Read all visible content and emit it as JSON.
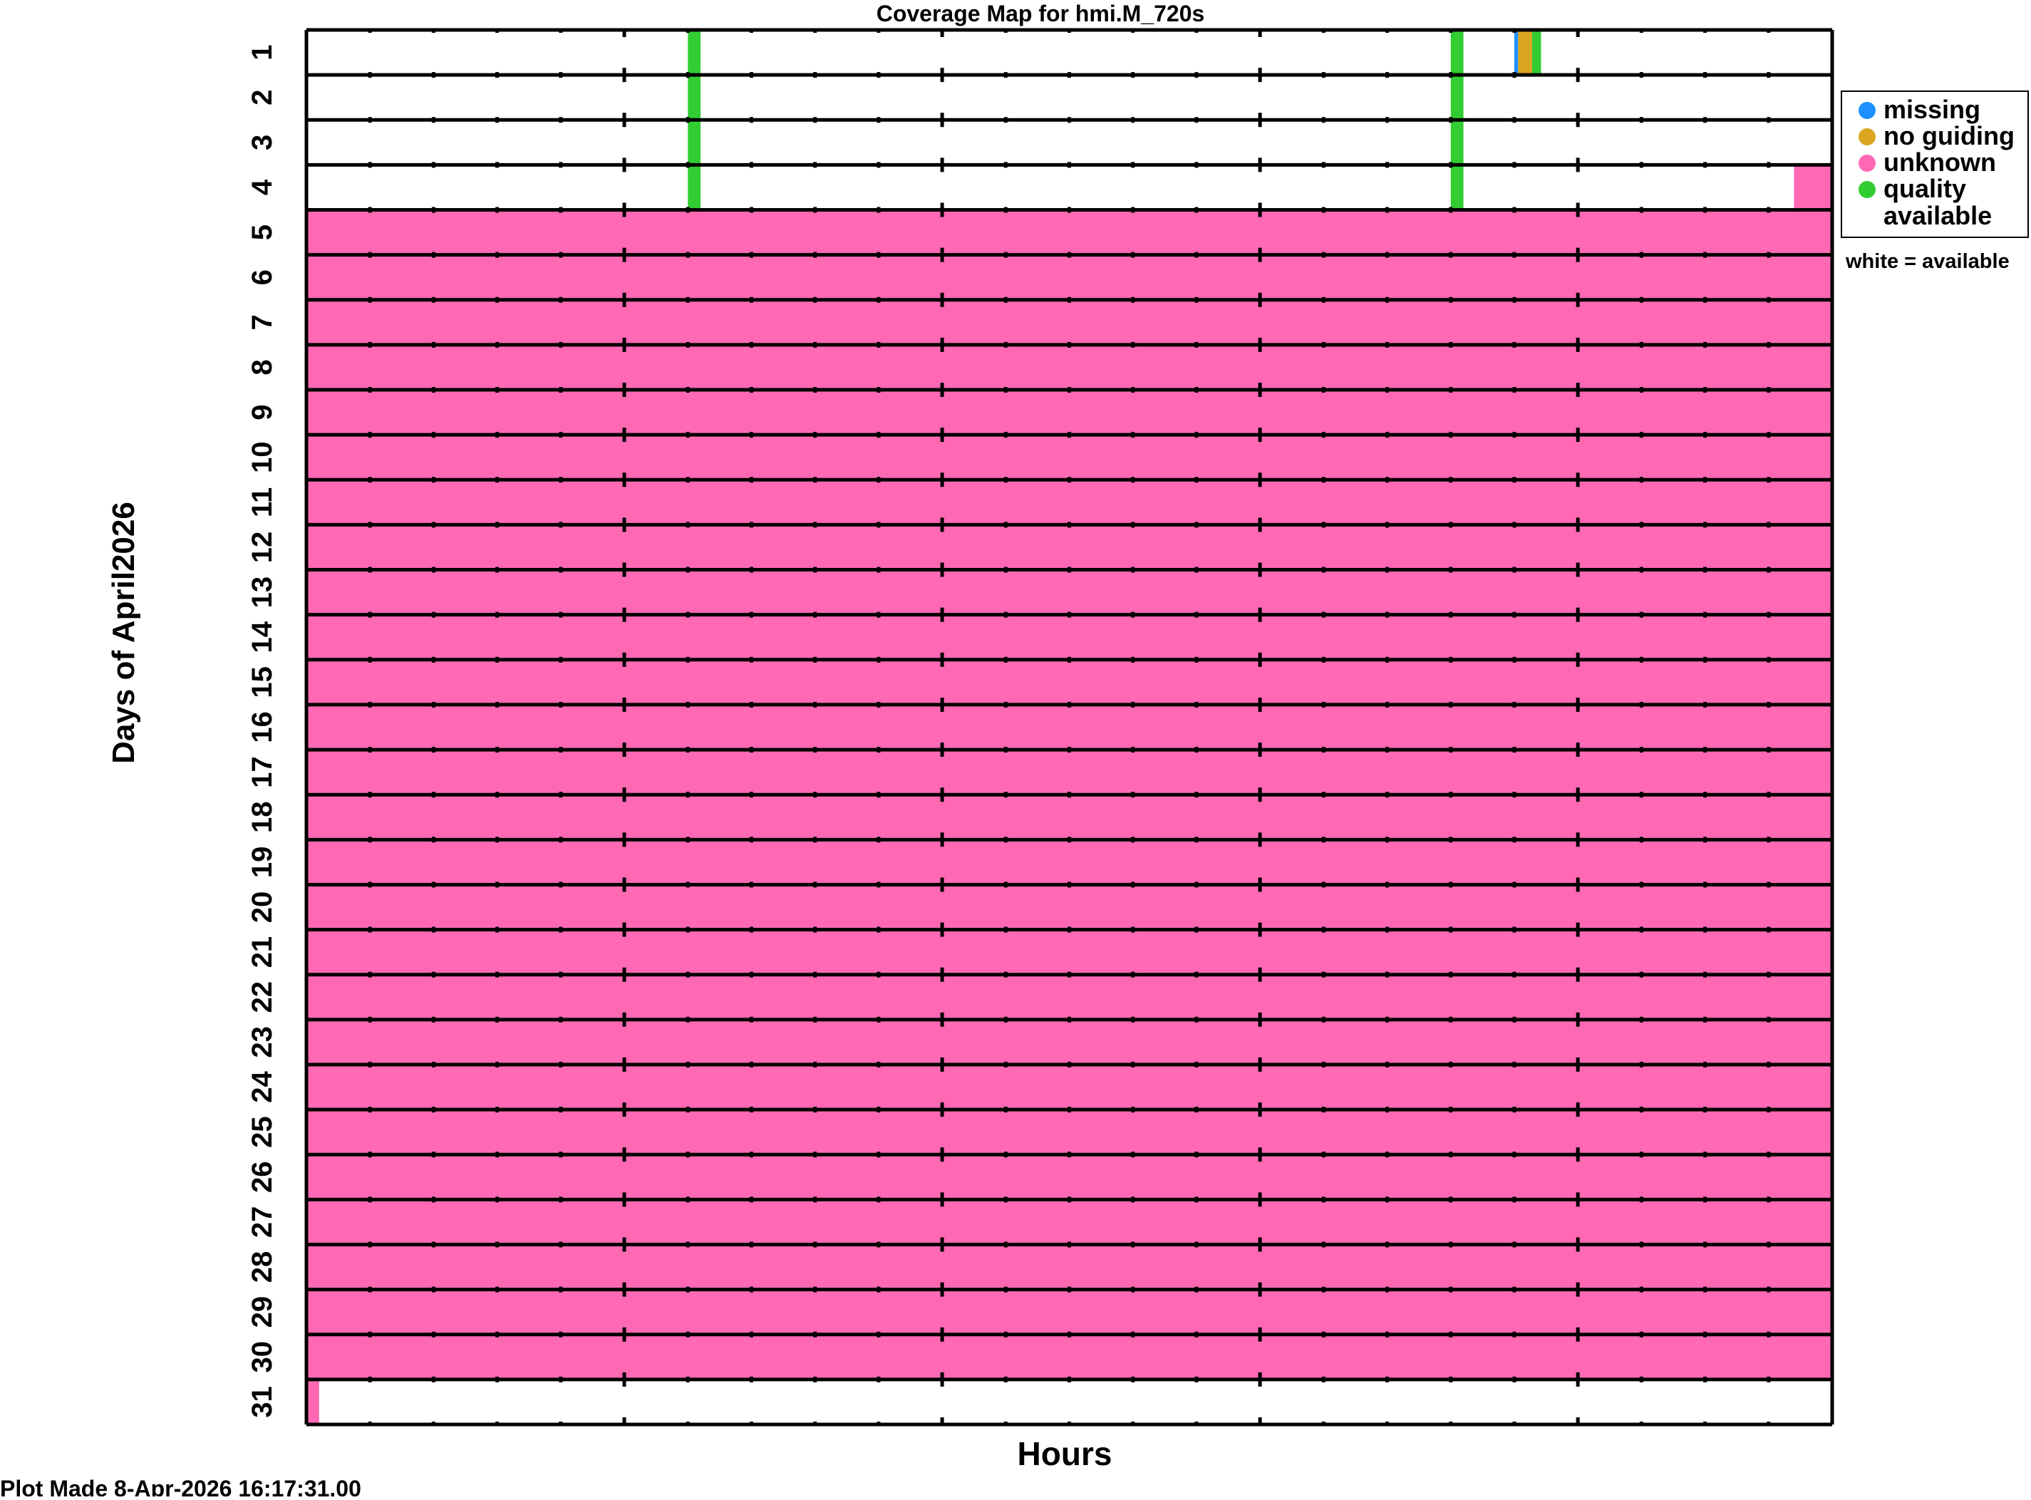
{
  "chart_data": {
    "type": "heatmap",
    "title": "Coverage Map for hmi.M_720s",
    "xlabel": "Hours",
    "ylabel": "Days of April2026",
    "xlim": [
      0,
      24
    ],
    "x_major_tick_step": 5,
    "x_minor_tick_step": 1,
    "days": [
      1,
      2,
      3,
      4,
      5,
      6,
      7,
      8,
      9,
      10,
      11,
      12,
      13,
      14,
      15,
      16,
      17,
      18,
      19,
      20,
      21,
      22,
      23,
      24,
      25,
      26,
      27,
      28,
      29,
      30,
      31
    ],
    "default_status": "available",
    "colors": {
      "missing": "#1e90ff",
      "no_guiding": "#daa520",
      "unknown": "#ff69b4",
      "quality_available": "#32cd32",
      "available": "#ffffff"
    },
    "segments": [
      {
        "day": 1,
        "start": 6.0,
        "end": 6.2,
        "status": "quality_available"
      },
      {
        "day": 1,
        "start": 18.0,
        "end": 18.2,
        "status": "quality_available"
      },
      {
        "day": 1,
        "start": 19.0,
        "end": 19.06,
        "status": "missing"
      },
      {
        "day": 1,
        "start": 19.06,
        "end": 19.28,
        "status": "no_guiding"
      },
      {
        "day": 1,
        "start": 19.28,
        "end": 19.42,
        "status": "quality_available"
      },
      {
        "day": 2,
        "start": 6.0,
        "end": 6.2,
        "status": "quality_available"
      },
      {
        "day": 2,
        "start": 18.0,
        "end": 18.2,
        "status": "quality_available"
      },
      {
        "day": 3,
        "start": 6.0,
        "end": 6.2,
        "status": "quality_available"
      },
      {
        "day": 3,
        "start": 18.0,
        "end": 18.2,
        "status": "quality_available"
      },
      {
        "day": 4,
        "start": 6.0,
        "end": 6.2,
        "status": "quality_available"
      },
      {
        "day": 4,
        "start": 18.0,
        "end": 18.2,
        "status": "quality_available"
      },
      {
        "day": 4,
        "start": 23.4,
        "end": 24.0,
        "status": "unknown"
      },
      {
        "day_range": [
          5,
          30
        ],
        "start": 0,
        "end": 24,
        "status": "unknown"
      },
      {
        "day": 31,
        "start": 0,
        "end": 0.2,
        "status": "unknown"
      }
    ],
    "legend": {
      "placement": "right",
      "items": [
        {
          "key": "missing",
          "label": "missing"
        },
        {
          "key": "no_guiding",
          "label": "no guiding"
        },
        {
          "key": "unknown",
          "label": "unknown"
        },
        {
          "key": "quality_available",
          "label": "quality",
          "label2": "available"
        }
      ],
      "note": "white = available"
    }
  },
  "footer": "Plot Made  8-Apr-2026 16:17:31.00"
}
